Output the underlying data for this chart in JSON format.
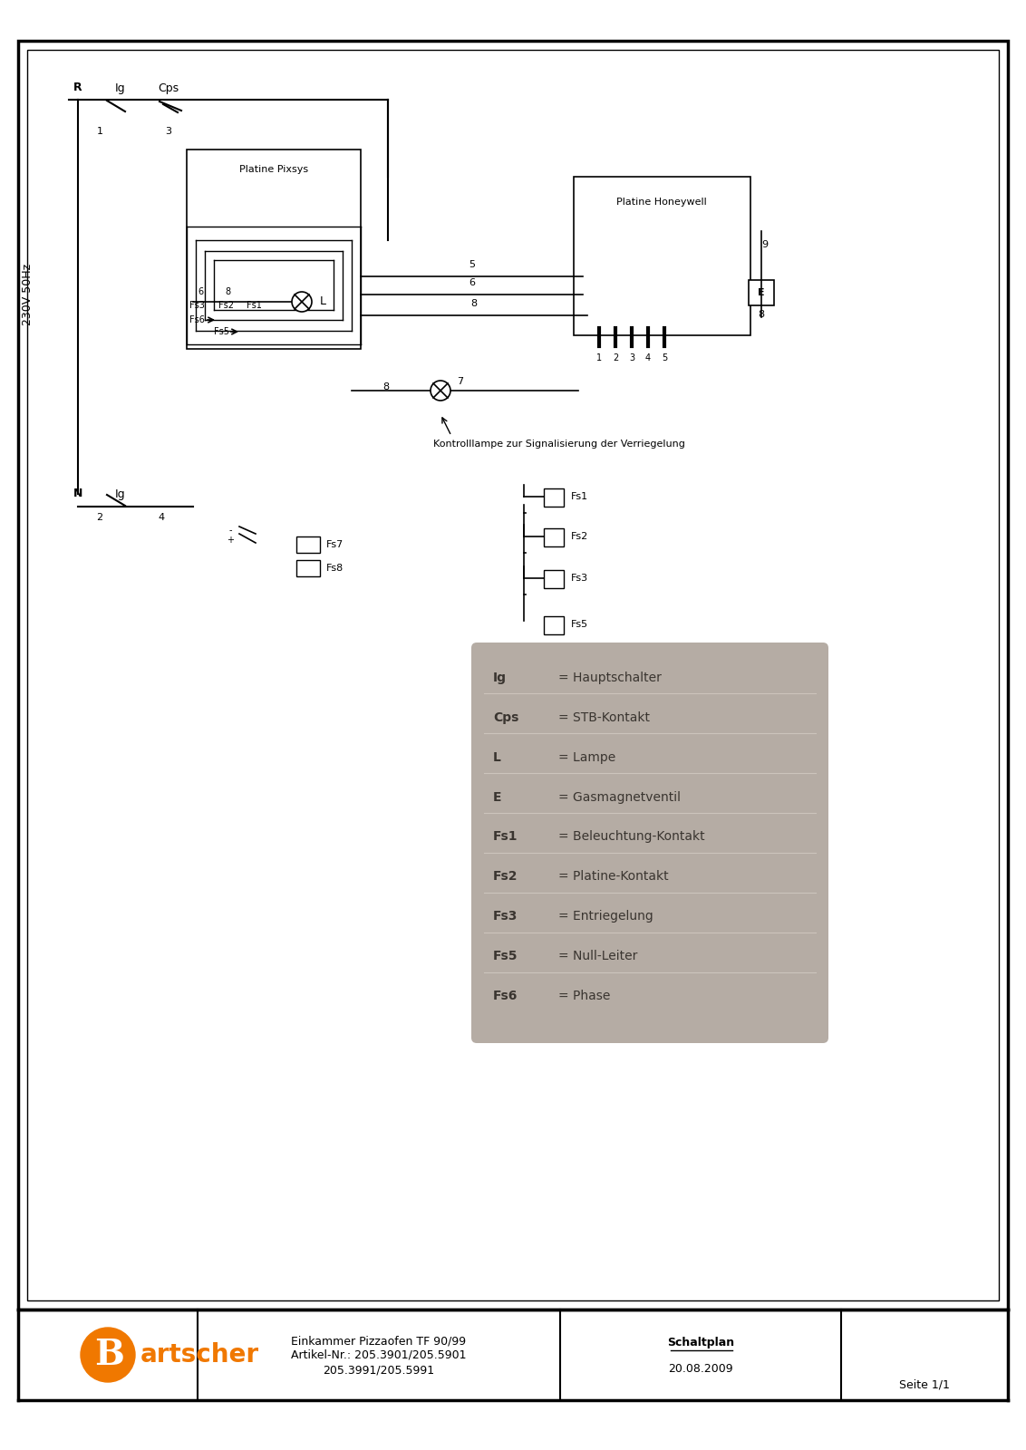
{
  "background_color": "#ffffff",
  "border_color": "#000000",
  "legend_bg_color": "#b5aca4",
  "legend_items": [
    {
      "symbol": "Ig",
      "eq": "= Hauptschalter"
    },
    {
      "symbol": "Cps",
      "eq": "= STB-Kontakt"
    },
    {
      "symbol": "L",
      "eq": "= Lampe"
    },
    {
      "symbol": "E",
      "eq": "= Gasmagnetventil"
    },
    {
      "symbol": "Fs1",
      "eq": "= Beleuchtung-Kontakt"
    },
    {
      "symbol": "Fs2",
      "eq": "= Platine-Kontakt"
    },
    {
      "symbol": "Fs3",
      "eq": "= Entriegelung"
    },
    {
      "symbol": "Fs5",
      "eq": "= Null-Leiter"
    },
    {
      "symbol": "Fs6",
      "eq": "= Phase"
    }
  ],
  "title_line1": "Einkammer Pizzaofen TF 90/99",
  "title_line2": "Artikel-Nr.: 205.3901/205.5901",
  "title_line3": "205.3991/205.5991",
  "doc_type": "Schaltplan",
  "doc_date": "20.08.2009",
  "page": "Seite 1/1",
  "voltage_label": "230V 50Hz"
}
